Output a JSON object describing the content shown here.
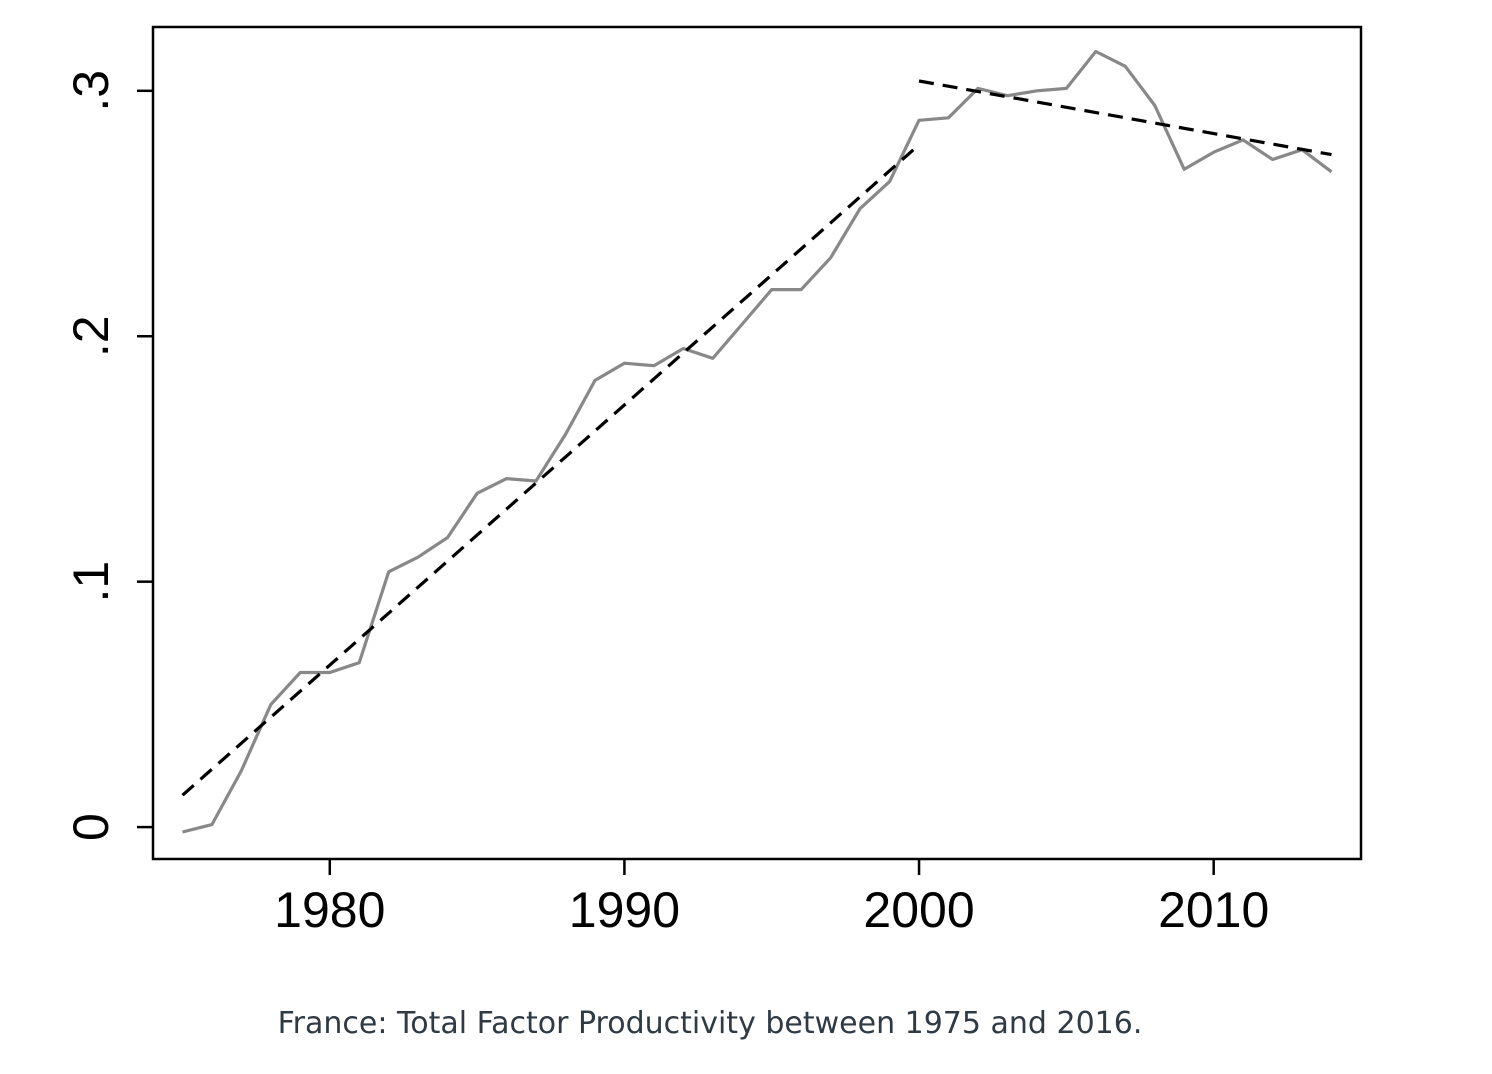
{
  "caption": "France: Total Factor Productivity between 1975 and 2016.",
  "chart_data": {
    "type": "line",
    "title": "",
    "xlabel": "",
    "ylabel": "",
    "xlim": [
      1974,
      2015
    ],
    "ylim": [
      -0.013,
      0.326
    ],
    "x_ticks": [
      1980,
      1990,
      2000,
      2010
    ],
    "x_tick_labels": [
      "1980",
      "1990",
      "2000",
      "2010"
    ],
    "y_ticks": [
      0,
      0.1,
      0.2,
      0.3
    ],
    "y_tick_labels": [
      "0",
      ".1",
      ".2",
      ".3"
    ],
    "grid": false,
    "legend": "none",
    "series": [
      {
        "style": "solid",
        "color": "#888888",
        "x": [
          1975,
          1976,
          1977,
          1978,
          1979,
          1980,
          1981,
          1982,
          1983,
          1984,
          1985,
          1986,
          1987,
          1988,
          1989,
          1990,
          1991,
          1992,
          1993,
          1994,
          1995,
          1996,
          1997,
          1998,
          1999,
          2000,
          2001,
          2002,
          2003,
          2004,
          2005,
          2006,
          2007,
          2008,
          2009,
          2010,
          2011,
          2012,
          2013,
          2014
        ],
        "values": [
          -0.002,
          0.001,
          0.023,
          0.05,
          0.063,
          0.063,
          0.067,
          0.104,
          0.11,
          0.118,
          0.136,
          0.142,
          0.141,
          0.16,
          0.182,
          0.189,
          0.188,
          0.195,
          0.191,
          0.205,
          0.219,
          0.219,
          0.232,
          0.252,
          0.263,
          0.288,
          0.289,
          0.301,
          0.298,
          0.3,
          0.301,
          0.316,
          0.31,
          0.294,
          0.268,
          0.275,
          0.28,
          0.272,
          0.276,
          0.267
        ]
      },
      {
        "style": "dashed",
        "color": "#000000",
        "x": [
          1975,
          2000
        ],
        "values": [
          0.013,
          0.278
        ]
      },
      {
        "style": "dashed",
        "color": "#000000",
        "x": [
          2000,
          2014
        ],
        "values": [
          0.304,
          0.274
        ]
      }
    ]
  }
}
